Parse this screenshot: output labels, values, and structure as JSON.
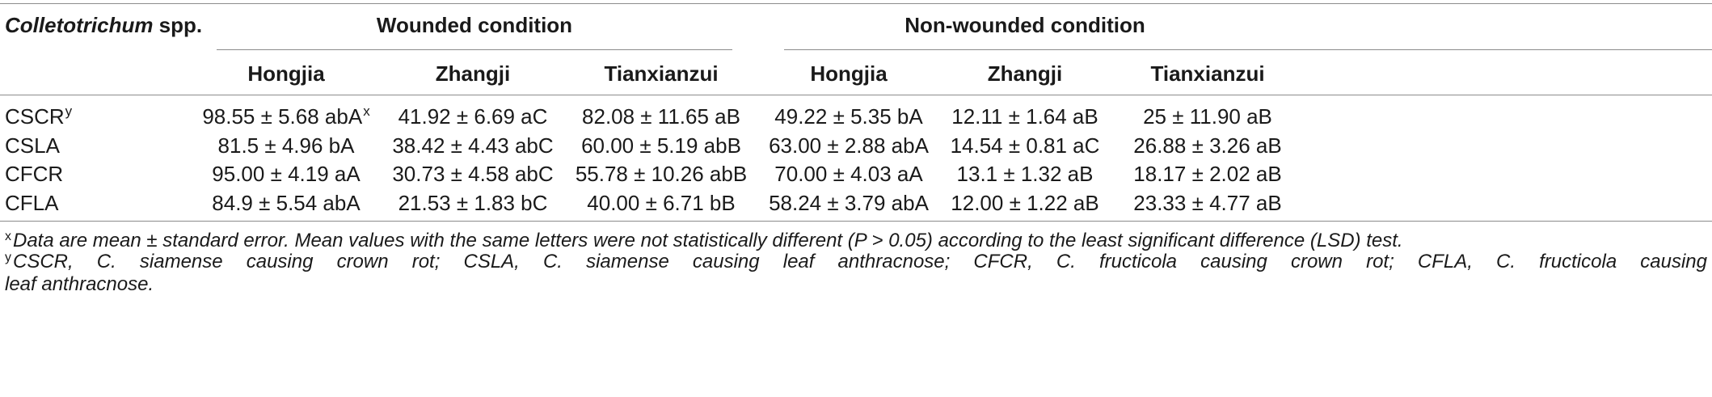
{
  "table": {
    "header": {
      "species_label_italic": "Colletotrichum",
      "species_label_rest": " spp.",
      "group_wounded": "Wounded condition",
      "group_nonwounded": "Non-wounded condition",
      "columns": [
        "Hongjia",
        "Zhangji",
        "Tianxianzui",
        "Hongjia",
        "Zhangji",
        "Tianxianzui"
      ]
    },
    "rows": [
      {
        "label": "CSCR",
        "label_sup": "y",
        "cells": [
          "98.55 ± 5.68 abA",
          "41.92 ± 6.69 aC",
          "82.08 ± 11.65 aB",
          "49.22 ± 5.35 bA",
          "12.11 ± 1.64 aB",
          "25 ± 11.90 aB"
        ],
        "first_cell_sup": "x"
      },
      {
        "label": "CSLA",
        "cells": [
          "81.5 ± 4.96 bA",
          "38.42 ± 4.43 abC",
          "60.00 ± 5.19 abB",
          "63.00 ± 2.88 abA",
          "14.54 ± 0.81 aC",
          "26.88 ± 3.26 aB"
        ]
      },
      {
        "label": "CFCR",
        "cells": [
          "95.00 ± 4.19 aA",
          "30.73 ± 4.58 abC",
          "55.78 ± 10.26 abB",
          "70.00 ± 4.03 aA",
          "13.1 ± 1.32 aB",
          "18.17 ± 2.02 aB"
        ]
      },
      {
        "label": "CFLA",
        "cells": [
          "84.9 ± 5.54 abA",
          "21.53 ± 1.83 bC",
          "40.00 ± 6.71 bB",
          "58.24 ± 3.79 abA",
          "12.00 ± 1.22 aB",
          "23.33 ± 4.77 aB"
        ]
      }
    ]
  },
  "footnotes": {
    "x_marker": "x",
    "x_text": "Data are mean ± standard error. Mean values with the same letters were not statistically different (P > 0.05) according to the least significant difference (LSD) test.",
    "y_marker": "y",
    "y_text_line1": "CSCR, C. siamense causing crown rot; CSLA, C. siamense causing leaf anthracnose; CFCR, C. fructicola causing crown rot; CFLA, C. fructicola causing",
    "y_text_line2": "leaf anthracnose."
  }
}
